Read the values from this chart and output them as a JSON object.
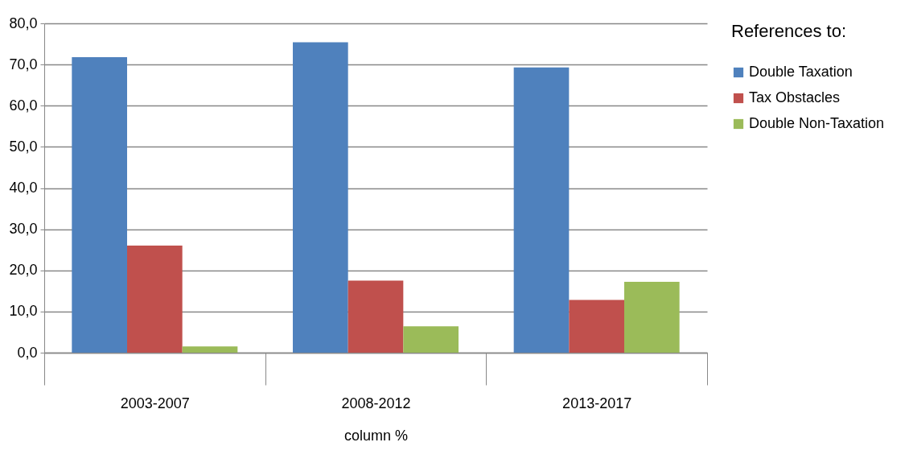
{
  "chart_data": {
    "type": "bar",
    "xlabel": "column %",
    "legend_title": "References to:",
    "categories": [
      "2003-2007",
      "2008-2012",
      "2013-2017"
    ],
    "series": [
      {
        "name": "Double Taxation",
        "color": "#4f81bd",
        "values": [
          71.8,
          75.4,
          69.3
        ]
      },
      {
        "name": "Tax Obstacles",
        "color": "#c0504d",
        "values": [
          26.0,
          17.5,
          12.8
        ]
      },
      {
        "name": "Double Non-Taxation",
        "color": "#9bbb59",
        "values": [
          1.5,
          6.4,
          17.2
        ]
      }
    ],
    "ylim": [
      0,
      80
    ],
    "yticks": [
      {
        "value": 0,
        "label": "0,0"
      },
      {
        "value": 10,
        "label": "10,0"
      },
      {
        "value": 20,
        "label": "20,0"
      },
      {
        "value": 30,
        "label": "30,0"
      },
      {
        "value": 40,
        "label": "40,0"
      },
      {
        "value": 50,
        "label": "50,0"
      },
      {
        "value": 60,
        "label": "60,0"
      },
      {
        "value": 70,
        "label": "70,0"
      },
      {
        "value": 80,
        "label": "80,0"
      }
    ],
    "grid": "y",
    "legend": "right"
  }
}
